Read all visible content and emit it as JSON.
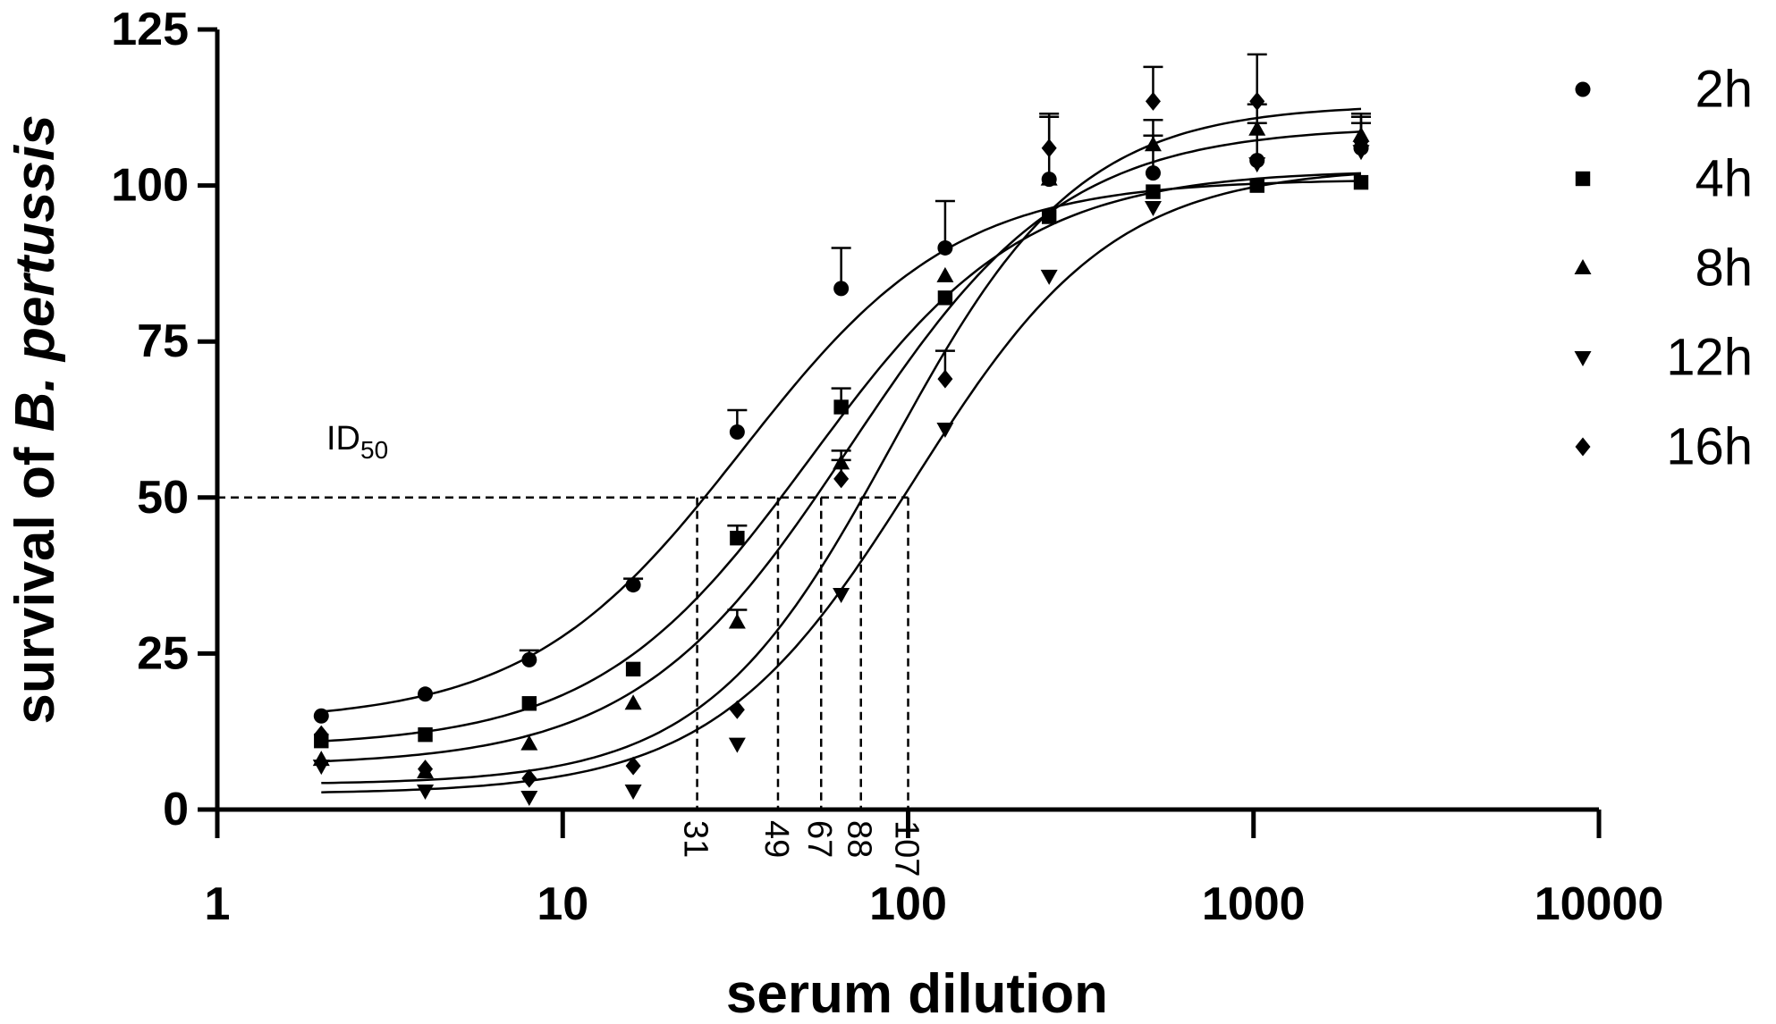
{
  "chart_data": {
    "type": "scatter",
    "xlabel": "serum dilution",
    "ylabel_parts": [
      "survival of ",
      "B. pertussis"
    ],
    "x_scale": "log",
    "xlim": [
      1,
      10000
    ],
    "ylim": [
      0,
      125
    ],
    "x_ticks": [
      1,
      10,
      100,
      1000,
      10000
    ],
    "y_ticks": [
      0,
      25,
      50,
      75,
      100,
      125
    ],
    "legend_position": "right",
    "threshold": {
      "y": 50,
      "label_main": "ID",
      "label_sub": "50"
    },
    "id50_x": [
      24.5,
      42,
      56,
      73,
      100
    ],
    "id50_labels": [
      "31",
      "49",
      "67",
      "88",
      "107"
    ],
    "series": [
      {
        "name": "2h",
        "marker": "circle",
        "x": [
          2,
          4,
          8,
          16,
          32,
          64,
          128,
          256,
          512,
          1024,
          2048
        ],
        "y": [
          15,
          18.5,
          24,
          36,
          60.5,
          83.5,
          90,
          101,
          102,
          104,
          106
        ],
        "err": [
          0,
          0,
          1.5,
          1,
          3.5,
          6.5,
          7.5,
          10,
          6,
          6,
          4
        ],
        "fit": {
          "bottom": 14,
          "top": 101,
          "ec50": 33,
          "hill": 1.4
        }
      },
      {
        "name": "4h",
        "marker": "square",
        "x": [
          2,
          4,
          8,
          16,
          32,
          64,
          128,
          256,
          512,
          1024,
          2048
        ],
        "y": [
          11,
          12,
          17,
          22.5,
          43.5,
          64.5,
          82,
          95,
          99,
          100,
          100.5
        ],
        "err": [
          0,
          0,
          0,
          0,
          2,
          3,
          0,
          0,
          0,
          0,
          0
        ],
        "fit": {
          "bottom": 10,
          "top": 102.5,
          "ec50": 52,
          "hill": 1.4
        }
      },
      {
        "name": "8h",
        "marker": "triangle-up",
        "x": [
          2,
          4,
          8,
          16,
          32,
          64,
          128,
          256,
          512,
          1024,
          2048
        ],
        "y": [
          8,
          6,
          10.5,
          17,
          30,
          55.5,
          85.5,
          101,
          106.5,
          109,
          108
        ],
        "err": [
          0,
          0,
          0,
          0,
          2,
          2,
          0,
          0,
          4,
          4,
          3
        ],
        "fit": {
          "bottom": 7,
          "top": 109.5,
          "ec50": 68,
          "hill": 1.4
        }
      },
      {
        "name": "12h",
        "marker": "triangle-down",
        "x": [
          2,
          4,
          8,
          16,
          32,
          64,
          128,
          256,
          512,
          1024,
          2048
        ],
        "y": [
          7,
          3,
          2,
          3,
          10.5,
          34.5,
          61,
          85.5,
          96.5,
          103.5,
          105.5
        ],
        "err": [
          0,
          0,
          0,
          0,
          0,
          0,
          0,
          0,
          0,
          0,
          0
        ],
        "fit": {
          "bottom": 2.5,
          "top": 103,
          "ec50": 104,
          "hill": 1.5
        }
      },
      {
        "name": "16h",
        "marker": "diamond",
        "x": [
          2,
          4,
          8,
          16,
          32,
          64,
          128,
          256,
          512,
          1024,
          2048
        ],
        "y": [
          12,
          6.5,
          5,
          7,
          16,
          53,
          69,
          106,
          113.5,
          113.5,
          107
        ],
        "err": [
          0,
          0,
          0,
          0,
          0,
          3,
          4.5,
          5.5,
          5.5,
          7.5,
          4.5
        ],
        "fit": {
          "bottom": 4,
          "top": 113,
          "ec50": 90,
          "hill": 1.6
        }
      }
    ]
  }
}
